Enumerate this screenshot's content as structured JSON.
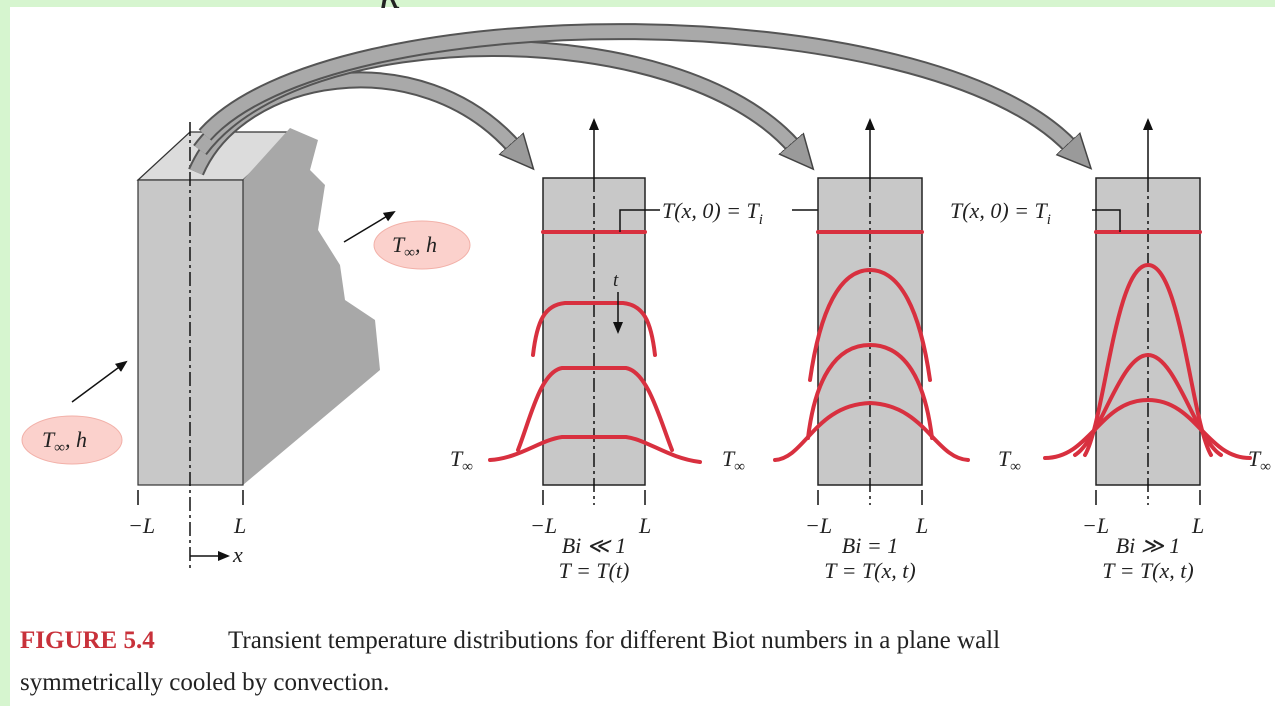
{
  "top_fragment": "k",
  "wall": {
    "minus_l": "−L",
    "l": "L",
    "x": "x",
    "ambient_left": {
      "symbol": "T",
      "subscript": "∞",
      "suffix": ", h"
    },
    "ambient_right": {
      "symbol": "T",
      "subscript": "∞",
      "suffix": ", h"
    }
  },
  "panels": [
    {
      "initial": {
        "text": "T(x, 0) = T",
        "subscript": "i"
      },
      "time": "t",
      "minus_l": "−L",
      "l": "L",
      "biot": "Bi ≪ 1",
      "model": "T = T(t)"
    },
    {
      "minus_l": "−L",
      "l": "L",
      "biot": "Bi = 1",
      "model": "T = T(x, t)"
    },
    {
      "initial": {
        "text": "T(x, 0) = T",
        "subscript": "i"
      },
      "minus_l": "−L",
      "l": "L",
      "biot": "Bi ≫ 1",
      "model": "T = T(x, t)"
    }
  ],
  "ambient_labels": [
    {
      "symbol": "T",
      "subscript": "∞"
    },
    {
      "symbol": "T",
      "subscript": "∞"
    },
    {
      "symbol": "T",
      "subscript": "∞"
    },
    {
      "symbol": "T",
      "subscript": "∞"
    }
  ],
  "caption": {
    "label": "FIGURE 5.4",
    "lines": [
      "Transient temperature distributions for different Biot numbers in a plane wall",
      "symmetrically cooled by convection."
    ]
  }
}
